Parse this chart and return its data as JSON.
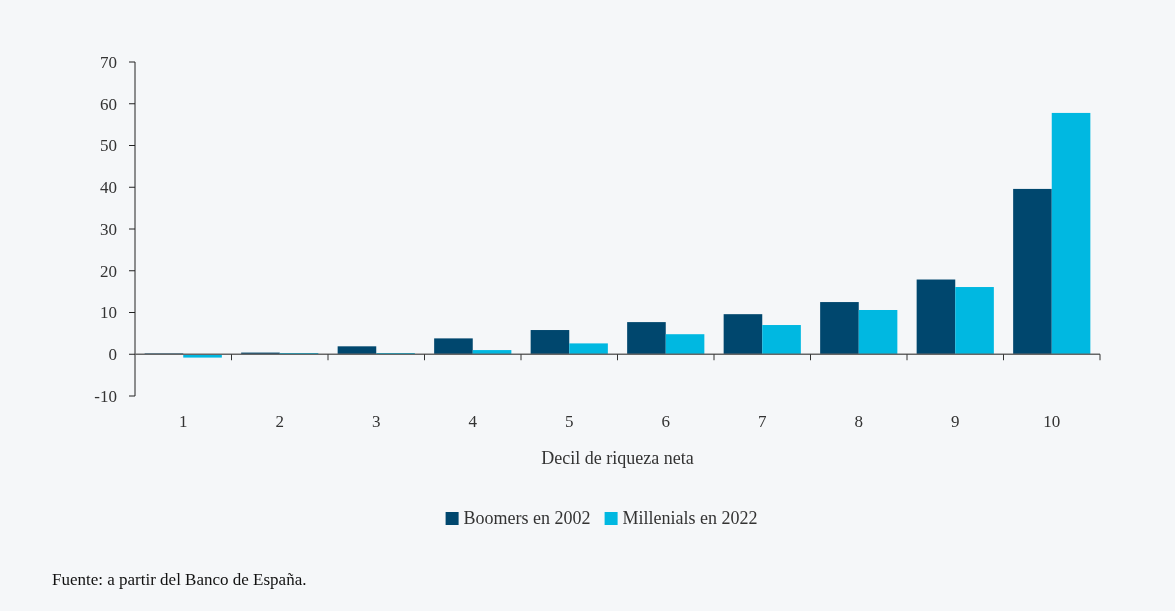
{
  "chart_data": {
    "type": "bar",
    "xlabel": "Decil de riqueza neta",
    "categories": [
      "1",
      "2",
      "3",
      "4",
      "5",
      "6",
      "7",
      "8",
      "9",
      "10"
    ],
    "series": [
      {
        "name": "Boomers en 2002",
        "color": "#00476e",
        "values": [
          0.2,
          0.4,
          1.9,
          3.8,
          5.8,
          7.7,
          9.6,
          12.5,
          17.9,
          39.6
        ]
      },
      {
        "name": "Millenials en 2022",
        "color": "#00b8e1",
        "values": [
          -0.8,
          0.3,
          0.3,
          1.0,
          2.6,
          4.8,
          7.0,
          10.6,
          16.1,
          57.8
        ]
      }
    ],
    "ylim": [
      -10,
      70
    ],
    "yticks": [
      -10,
      0,
      10,
      20,
      30,
      40,
      50,
      60,
      70
    ],
    "legend": "bottom",
    "annotations": [
      "Fuente: a partir del Banco de España."
    ]
  }
}
